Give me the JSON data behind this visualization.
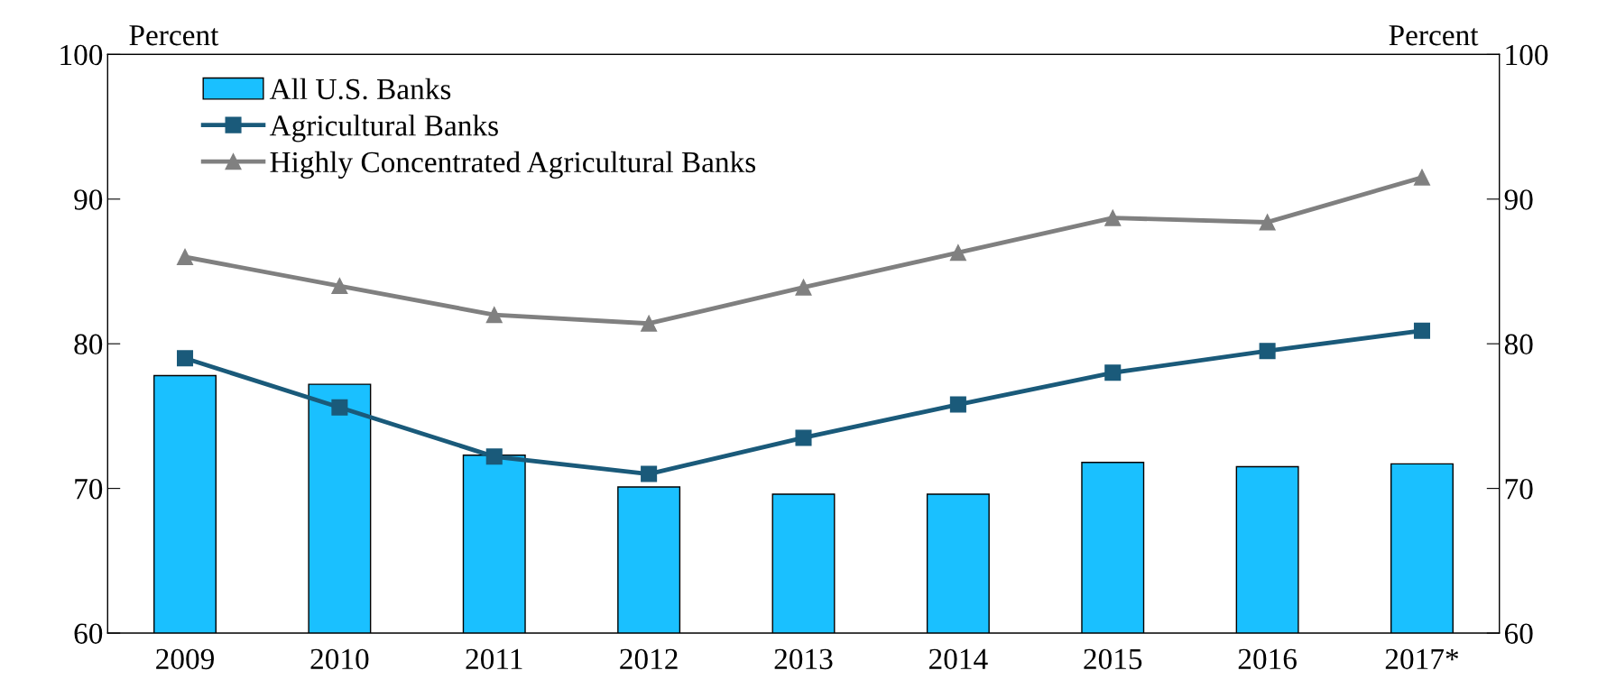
{
  "chart_data": {
    "type": "bar",
    "ylabel": "Percent",
    "y2label": "Percent",
    "categories": [
      "2009",
      "2010",
      "2011",
      "2012",
      "2013",
      "2014",
      "2015",
      "2016",
      "2017*"
    ],
    "series": [
      {
        "name": "All U.S. Banks",
        "color": "#1ac0ff",
        "values": [
          77.8,
          77.2,
          72.3,
          70.1,
          69.6,
          69.6,
          71.8,
          71.5,
          71.7
        ]
      },
      {
        "name": "Agricultural Banks",
        "type": "line",
        "marker": "square",
        "color": "#1a5a7a",
        "values": [
          79.0,
          75.6,
          72.2,
          71.0,
          73.5,
          75.8,
          78.0,
          79.5,
          80.9
        ]
      },
      {
        "name": "Highly Concentrated Agricultural Banks",
        "type": "line",
        "marker": "triangle",
        "color": "#808080",
        "values": [
          86.0,
          84.0,
          82.0,
          81.4,
          83.9,
          86.3,
          88.7,
          88.4,
          91.5
        ]
      }
    ],
    "ylim": [
      60,
      100
    ],
    "yticks": [
      60,
      70,
      80,
      90,
      100
    ],
    "y2lim": [
      60,
      100
    ],
    "y2ticks": [
      60,
      70,
      80,
      90,
      100
    ],
    "grid": false,
    "legend": "top left"
  }
}
